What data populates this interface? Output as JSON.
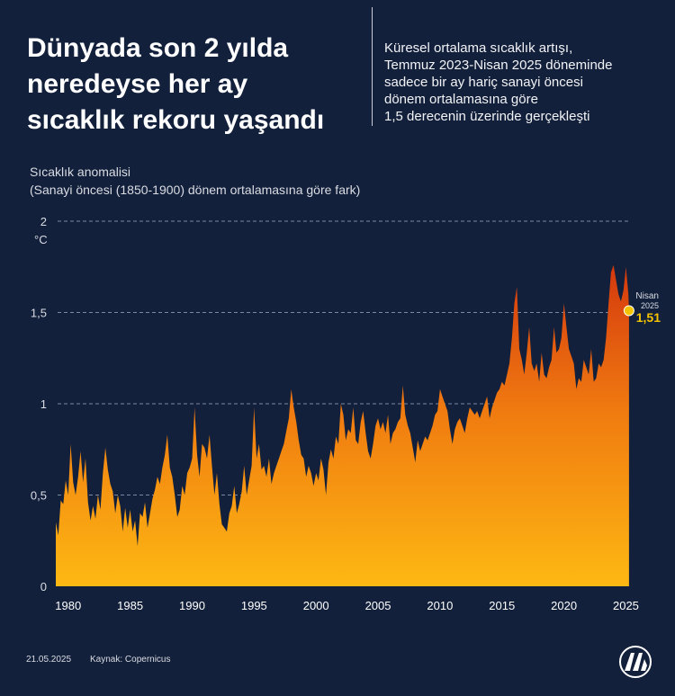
{
  "header": {
    "title_lines": [
      "Dünyada son 2 yılda",
      "neredeyse her ay",
      "sıcaklık rekoru yaşandı"
    ],
    "desc_lines": [
      "Küresel ortalama sıcaklık artışı,",
      "Temmuz 2023-Nisan 2025 döneminde",
      "sadece bir ay hariç sanayi öncesi",
      "dönem ortalamasına göre",
      "1,5 derecenin üzerinde gerçekleşti"
    ]
  },
  "axis": {
    "ytitle_1": "Sıcaklık anomalisi",
    "ytitle_2": "(Sanayi öncesi (1850-1900) dönem ortalamasına göre fark)",
    "unit": "°C"
  },
  "footer": {
    "date": "21.05.2025",
    "source": "Kaynak: Copernicus"
  },
  "logo": {
    "name": "aa-logo-icon"
  },
  "colors": {
    "background": "#13203b",
    "fill_top": "#d4380e",
    "fill_bottom": "#fdb813",
    "highlight": "#f5c400"
  },
  "chart_data": {
    "type": "area",
    "ylabel": "Sıcaklık anomalisi (Sanayi öncesi (1850-1900) dönem ortalamasına göre fark)",
    "yunit": "°C",
    "ylim": [
      0,
      2
    ],
    "xlim": [
      1979,
      2025.33
    ],
    "y_ticks": [
      0,
      0.5,
      1,
      1.5,
      2
    ],
    "y_tick_labels": [
      "0",
      "0,5",
      "1",
      "1,5",
      "2"
    ],
    "x_ticks": [
      1980,
      1985,
      1990,
      1995,
      2000,
      2005,
      2010,
      2015,
      2020,
      2025
    ],
    "grid": "horizontal dashed",
    "annotation": {
      "label": "Nisan",
      "year": "2025",
      "value_label": "1,51",
      "x": 2025.25,
      "y": 1.51
    },
    "series": [
      {
        "points": [
          [
            1979.0,
            0.35
          ],
          [
            1979.2,
            0.28
          ],
          [
            1979.4,
            0.47
          ],
          [
            1979.6,
            0.45
          ],
          [
            1979.8,
            0.58
          ],
          [
            1980.0,
            0.5
          ],
          [
            1980.2,
            0.78
          ],
          [
            1980.4,
            0.57
          ],
          [
            1980.6,
            0.5
          ],
          [
            1980.8,
            0.6
          ],
          [
            1981.0,
            0.74
          ],
          [
            1981.2,
            0.57
          ],
          [
            1981.4,
            0.7
          ],
          [
            1981.6,
            0.46
          ],
          [
            1981.8,
            0.36
          ],
          [
            1982.0,
            0.44
          ],
          [
            1982.2,
            0.37
          ],
          [
            1982.4,
            0.5
          ],
          [
            1982.6,
            0.42
          ],
          [
            1982.8,
            0.62
          ],
          [
            1983.0,
            0.76
          ],
          [
            1983.2,
            0.64
          ],
          [
            1983.4,
            0.56
          ],
          [
            1983.6,
            0.52
          ],
          [
            1983.8,
            0.4
          ],
          [
            1984.0,
            0.5
          ],
          [
            1984.2,
            0.44
          ],
          [
            1984.4,
            0.3
          ],
          [
            1984.6,
            0.43
          ],
          [
            1984.8,
            0.32
          ],
          [
            1985.0,
            0.42
          ],
          [
            1985.2,
            0.3
          ],
          [
            1985.4,
            0.36
          ],
          [
            1985.6,
            0.22
          ],
          [
            1985.8,
            0.4
          ],
          [
            1986.0,
            0.38
          ],
          [
            1986.2,
            0.46
          ],
          [
            1986.4,
            0.32
          ],
          [
            1986.6,
            0.4
          ],
          [
            1986.8,
            0.48
          ],
          [
            1987.0,
            0.53
          ],
          [
            1987.2,
            0.6
          ],
          [
            1987.4,
            0.56
          ],
          [
            1987.6,
            0.65
          ],
          [
            1987.8,
            0.72
          ],
          [
            1988.0,
            0.83
          ],
          [
            1988.2,
            0.65
          ],
          [
            1988.4,
            0.6
          ],
          [
            1988.6,
            0.5
          ],
          [
            1988.8,
            0.38
          ],
          [
            1989.0,
            0.42
          ],
          [
            1989.2,
            0.55
          ],
          [
            1989.4,
            0.5
          ],
          [
            1989.6,
            0.62
          ],
          [
            1989.8,
            0.65
          ],
          [
            1990.0,
            0.7
          ],
          [
            1990.2,
            0.98
          ],
          [
            1990.4,
            0.72
          ],
          [
            1990.6,
            0.6
          ],
          [
            1990.8,
            0.78
          ],
          [
            1991.0,
            0.76
          ],
          [
            1991.2,
            0.7
          ],
          [
            1991.4,
            0.83
          ],
          [
            1991.6,
            0.66
          ],
          [
            1991.8,
            0.5
          ],
          [
            1992.0,
            0.62
          ],
          [
            1992.2,
            0.45
          ],
          [
            1992.4,
            0.34
          ],
          [
            1992.6,
            0.32
          ],
          [
            1992.8,
            0.3
          ],
          [
            1993.0,
            0.4
          ],
          [
            1993.2,
            0.44
          ],
          [
            1993.4,
            0.55
          ],
          [
            1993.6,
            0.4
          ],
          [
            1993.8,
            0.45
          ],
          [
            1994.0,
            0.52
          ],
          [
            1994.2,
            0.66
          ],
          [
            1994.4,
            0.5
          ],
          [
            1994.6,
            0.58
          ],
          [
            1994.8,
            0.66
          ],
          [
            1995.0,
            0.98
          ],
          [
            1995.2,
            0.7
          ],
          [
            1995.4,
            0.78
          ],
          [
            1995.6,
            0.64
          ],
          [
            1995.8,
            0.66
          ],
          [
            1996.0,
            0.6
          ],
          [
            1996.2,
            0.7
          ],
          [
            1996.4,
            0.56
          ],
          [
            1996.6,
            0.62
          ],
          [
            1996.8,
            0.66
          ],
          [
            1997.0,
            0.7
          ],
          [
            1997.2,
            0.74
          ],
          [
            1997.4,
            0.78
          ],
          [
            1997.6,
            0.85
          ],
          [
            1997.8,
            0.92
          ],
          [
            1998.0,
            1.08
          ],
          [
            1998.2,
            0.98
          ],
          [
            1998.4,
            0.9
          ],
          [
            1998.6,
            0.8
          ],
          [
            1998.8,
            0.72
          ],
          [
            1999.0,
            0.7
          ],
          [
            1999.2,
            0.6
          ],
          [
            1999.4,
            0.66
          ],
          [
            1999.6,
            0.62
          ],
          [
            1999.8,
            0.55
          ],
          [
            2000.0,
            0.62
          ],
          [
            2000.2,
            0.58
          ],
          [
            2000.4,
            0.7
          ],
          [
            2000.6,
            0.64
          ],
          [
            2000.8,
            0.5
          ],
          [
            2001.0,
            0.68
          ],
          [
            2001.2,
            0.75
          ],
          [
            2001.4,
            0.7
          ],
          [
            2001.6,
            0.82
          ],
          [
            2001.8,
            0.78
          ],
          [
            2002.0,
            1.0
          ],
          [
            2002.2,
            0.94
          ],
          [
            2002.4,
            0.8
          ],
          [
            2002.6,
            0.86
          ],
          [
            2002.8,
            0.84
          ],
          [
            2003.0,
            0.98
          ],
          [
            2003.2,
            0.8
          ],
          [
            2003.4,
            0.78
          ],
          [
            2003.6,
            0.9
          ],
          [
            2003.8,
            0.96
          ],
          [
            2004.0,
            0.84
          ],
          [
            2004.2,
            0.74
          ],
          [
            2004.4,
            0.7
          ],
          [
            2004.6,
            0.78
          ],
          [
            2004.8,
            0.88
          ],
          [
            2005.0,
            0.92
          ],
          [
            2005.2,
            0.86
          ],
          [
            2005.4,
            0.9
          ],
          [
            2005.6,
            0.84
          ],
          [
            2005.8,
            0.94
          ],
          [
            2006.0,
            0.78
          ],
          [
            2006.2,
            0.84
          ],
          [
            2006.4,
            0.86
          ],
          [
            2006.6,
            0.9
          ],
          [
            2006.8,
            0.92
          ],
          [
            2007.0,
            1.1
          ],
          [
            2007.2,
            0.94
          ],
          [
            2007.4,
            0.88
          ],
          [
            2007.6,
            0.84
          ],
          [
            2007.8,
            0.76
          ],
          [
            2008.0,
            0.68
          ],
          [
            2008.2,
            0.8
          ],
          [
            2008.4,
            0.74
          ],
          [
            2008.6,
            0.78
          ],
          [
            2008.8,
            0.82
          ],
          [
            2009.0,
            0.8
          ],
          [
            2009.2,
            0.84
          ],
          [
            2009.4,
            0.88
          ],
          [
            2009.6,
            0.94
          ],
          [
            2009.8,
            0.96
          ],
          [
            2010.0,
            1.08
          ],
          [
            2010.2,
            1.04
          ],
          [
            2010.4,
            1.0
          ],
          [
            2010.6,
            0.96
          ],
          [
            2010.8,
            0.86
          ],
          [
            2011.0,
            0.78
          ],
          [
            2011.2,
            0.86
          ],
          [
            2011.4,
            0.9
          ],
          [
            2011.6,
            0.92
          ],
          [
            2011.8,
            0.88
          ],
          [
            2012.0,
            0.84
          ],
          [
            2012.2,
            0.92
          ],
          [
            2012.4,
            0.98
          ],
          [
            2012.6,
            0.96
          ],
          [
            2012.8,
            0.94
          ],
          [
            2013.0,
            0.96
          ],
          [
            2013.2,
            0.92
          ],
          [
            2013.4,
            0.96
          ],
          [
            2013.6,
            1.0
          ],
          [
            2013.8,
            1.04
          ],
          [
            2014.0,
            0.92
          ],
          [
            2014.2,
            0.98
          ],
          [
            2014.4,
            1.02
          ],
          [
            2014.6,
            1.06
          ],
          [
            2014.8,
            1.08
          ],
          [
            2015.0,
            1.12
          ],
          [
            2015.2,
            1.1
          ],
          [
            2015.4,
            1.16
          ],
          [
            2015.6,
            1.22
          ],
          [
            2015.8,
            1.36
          ],
          [
            2016.0,
            1.55
          ],
          [
            2016.2,
            1.64
          ],
          [
            2016.4,
            1.3
          ],
          [
            2016.6,
            1.24
          ],
          [
            2016.8,
            1.16
          ],
          [
            2017.0,
            1.28
          ],
          [
            2017.2,
            1.42
          ],
          [
            2017.4,
            1.22
          ],
          [
            2017.6,
            1.18
          ],
          [
            2017.8,
            1.22
          ],
          [
            2018.0,
            1.12
          ],
          [
            2018.2,
            1.28
          ],
          [
            2018.4,
            1.16
          ],
          [
            2018.6,
            1.14
          ],
          [
            2018.8,
            1.2
          ],
          [
            2019.0,
            1.24
          ],
          [
            2019.2,
            1.42
          ],
          [
            2019.4,
            1.28
          ],
          [
            2019.6,
            1.3
          ],
          [
            2019.8,
            1.36
          ],
          [
            2020.0,
            1.55
          ],
          [
            2020.2,
            1.42
          ],
          [
            2020.4,
            1.3
          ],
          [
            2020.6,
            1.26
          ],
          [
            2020.8,
            1.22
          ],
          [
            2021.0,
            1.08
          ],
          [
            2021.2,
            1.14
          ],
          [
            2021.4,
            1.12
          ],
          [
            2021.6,
            1.24
          ],
          [
            2021.8,
            1.2
          ],
          [
            2022.0,
            1.16
          ],
          [
            2022.2,
            1.3
          ],
          [
            2022.4,
            1.12
          ],
          [
            2022.6,
            1.14
          ],
          [
            2022.8,
            1.22
          ],
          [
            2023.0,
            1.2
          ],
          [
            2023.2,
            1.24
          ],
          [
            2023.4,
            1.36
          ],
          [
            2023.6,
            1.55
          ],
          [
            2023.8,
            1.72
          ],
          [
            2024.0,
            1.76
          ],
          [
            2024.2,
            1.68
          ],
          [
            2024.4,
            1.6
          ],
          [
            2024.6,
            1.56
          ],
          [
            2024.8,
            1.62
          ],
          [
            2025.0,
            1.75
          ],
          [
            2025.2,
            1.6
          ],
          [
            2025.25,
            1.51
          ]
        ]
      }
    ]
  }
}
